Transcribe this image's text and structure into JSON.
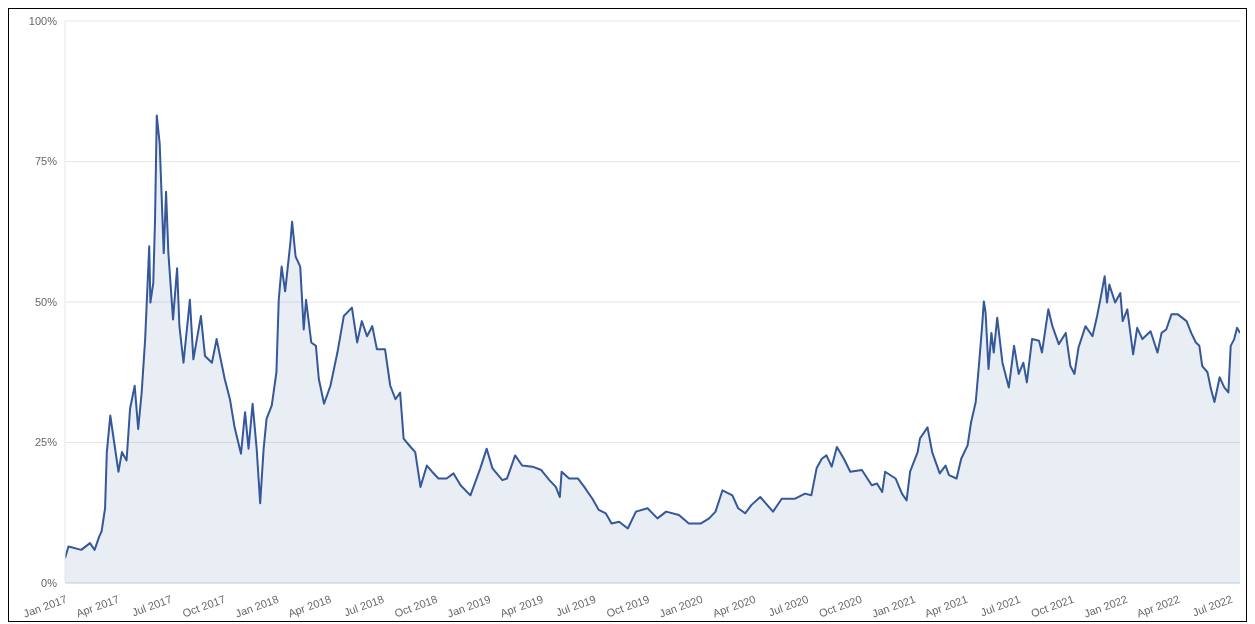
{
  "chart_data": {
    "type": "area",
    "x": [
      "2017-01-01",
      "2017-01-07",
      "2017-01-29",
      "2017-02-13",
      "2017-02-21",
      "2017-03-01",
      "2017-03-05",
      "2017-03-11",
      "2017-03-14",
      "2017-03-20",
      "2017-03-25",
      "2017-04-03",
      "2017-04-09",
      "2017-04-17",
      "2017-04-23",
      "2017-05-01",
      "2017-05-07",
      "2017-05-13",
      "2017-05-19",
      "2017-05-26",
      "2017-05-28",
      "2017-06-02",
      "2017-06-05",
      "2017-06-08",
      "2017-06-13",
      "2017-06-20",
      "2017-06-24",
      "2017-06-28",
      "2017-07-06",
      "2017-07-13",
      "2017-07-17",
      "2017-07-24",
      "2017-08-04",
      "2017-08-10",
      "2017-08-23",
      "2017-08-30",
      "2017-09-11",
      "2017-09-19",
      "2017-10-03",
      "2017-10-12",
      "2017-10-20",
      "2017-10-31",
      "2017-11-07",
      "2017-11-13",
      "2017-11-20",
      "2017-11-27",
      "2017-12-03",
      "2017-12-09",
      "2017-12-14",
      "2017-12-23",
      "2017-12-31",
      "2018-01-04",
      "2018-01-09",
      "2018-01-15",
      "2018-01-24",
      "2018-01-27",
      "2018-02-02",
      "2018-02-10",
      "2018-02-16",
      "2018-02-20",
      "2018-03-01",
      "2018-03-09",
      "2018-03-14",
      "2018-03-23",
      "2018-04-03",
      "2018-04-15",
      "2018-04-26",
      "2018-05-10",
      "2018-05-19",
      "2018-05-27",
      "2018-06-05",
      "2018-06-14",
      "2018-06-22",
      "2018-07-06",
      "2018-07-15",
      "2018-07-24",
      "2018-08-01",
      "2018-08-07",
      "2018-08-19",
      "2018-08-27",
      "2018-09-05",
      "2018-09-16",
      "2018-09-25",
      "2018-10-06",
      "2018-10-20",
      "2018-11-01",
      "2018-11-13",
      "2018-11-30",
      "2018-12-17",
      "2018-12-28",
      "2019-01-07",
      "2019-01-24",
      "2019-02-01",
      "2019-02-15",
      "2019-02-27",
      "2019-03-17",
      "2019-04-01",
      "2019-04-15",
      "2019-04-26",
      "2019-05-03",
      "2019-05-06",
      "2019-05-19",
      "2019-06-03",
      "2019-06-14",
      "2019-06-28",
      "2019-07-09",
      "2019-07-21",
      "2019-07-31",
      "2019-08-13",
      "2019-08-28",
      "2019-09-11",
      "2019-10-01",
      "2019-10-18",
      "2019-11-02",
      "2019-11-24",
      "2019-12-11",
      "2020-01-01",
      "2020-01-15",
      "2020-01-26",
      "2020-02-07",
      "2020-02-24",
      "2020-03-05",
      "2020-03-17",
      "2020-03-28",
      "2020-04-12",
      "2020-05-04",
      "2020-05-19",
      "2020-06-11",
      "2020-06-28",
      "2020-07-09",
      "2020-07-18",
      "2020-07-27",
      "2020-08-04",
      "2020-08-13",
      "2020-08-22",
      "2020-09-03",
      "2020-09-14",
      "2020-10-04",
      "2020-10-21",
      "2020-10-30",
      "2020-11-08",
      "2020-11-13",
      "2020-12-01",
      "2020-12-12",
      "2020-12-20",
      "2020-12-26",
      "2021-01-08",
      "2021-01-12",
      "2021-01-25",
      "2021-02-02",
      "2021-02-15",
      "2021-02-25",
      "2021-03-03",
      "2021-03-16",
      "2021-03-24",
      "2021-04-04",
      "2021-04-10",
      "2021-04-18",
      "2021-04-23",
      "2021-04-29",
      "2021-05-02",
      "2021-05-05",
      "2021-05-10",
      "2021-05-15",
      "2021-05-19",
      "2021-05-25",
      "2021-06-03",
      "2021-06-14",
      "2021-06-23",
      "2021-07-01",
      "2021-07-09",
      "2021-07-15",
      "2021-07-24",
      "2021-08-05",
      "2021-08-10",
      "2021-08-21",
      "2021-08-28",
      "2021-09-08",
      "2021-09-20",
      "2021-09-28",
      "2021-10-05",
      "2021-10-12",
      "2021-10-24",
      "2021-11-05",
      "2021-11-13",
      "2021-11-19",
      "2021-11-26",
      "2021-11-30",
      "2021-12-04",
      "2021-12-14",
      "2021-12-23",
      "2021-12-27",
      "2022-01-04",
      "2022-01-14",
      "2022-01-21",
      "2022-01-30",
      "2022-02-13",
      "2022-02-25",
      "2022-03-04",
      "2022-03-12",
      "2022-03-21",
      "2022-04-01",
      "2022-04-16",
      "2022-04-24",
      "2022-05-02",
      "2022-05-08",
      "2022-05-13",
      "2022-05-22",
      "2022-05-28",
      "2022-06-03",
      "2022-06-12",
      "2022-06-20",
      "2022-06-27",
      "2022-07-01",
      "2022-07-07",
      "2022-07-12",
      "2022-07-17"
    ],
    "series": [
      {
        "color": "#34589a",
        "values": [
          4.4,
          6.5,
          5.9,
          7.1,
          5.9,
          8.3,
          9.2,
          13.3,
          23.3,
          29.8,
          26.2,
          19.8,
          23.3,
          21.8,
          31.0,
          35.1,
          27.4,
          33.9,
          43.4,
          59.9,
          49.9,
          53.4,
          64.6,
          83.2,
          78.2,
          58.7,
          69.6,
          58.7,
          46.9,
          56.0,
          45.7,
          39.2,
          50.4,
          39.8,
          47.5,
          40.4,
          39.2,
          43.4,
          36.3,
          32.7,
          27.7,
          23.0,
          30.4,
          23.9,
          31.9,
          23.9,
          14.2,
          23.9,
          29.2,
          31.6,
          37.5,
          50.4,
          56.3,
          51.9,
          60.5,
          64.3,
          58.1,
          56.3,
          45.1,
          50.4,
          42.8,
          42.2,
          36.3,
          31.9,
          35.1,
          41.0,
          47.5,
          49.0,
          42.8,
          46.6,
          43.9,
          45.7,
          41.6,
          41.6,
          35.1,
          32.7,
          33.9,
          25.7,
          24.2,
          23.3,
          17.1,
          20.9,
          19.8,
          18.6,
          18.6,
          19.5,
          17.4,
          15.6,
          20.4,
          23.9,
          20.4,
          18.3,
          18.6,
          22.7,
          20.9,
          20.7,
          20.1,
          18.3,
          17.1,
          15.3,
          19.8,
          18.6,
          18.6,
          17.1,
          15.0,
          13.0,
          12.4,
          10.6,
          10.9,
          9.7,
          12.7,
          13.3,
          11.5,
          12.7,
          12.1,
          10.6,
          10.6,
          11.5,
          12.7,
          16.5,
          15.6,
          13.3,
          12.4,
          13.9,
          15.3,
          12.7,
          15.0,
          15.0,
          15.9,
          15.6,
          20.4,
          22.1,
          22.7,
          20.7,
          24.2,
          22.1,
          19.8,
          20.1,
          17.4,
          17.7,
          16.2,
          19.8,
          18.6,
          15.9,
          14.7,
          19.8,
          23.3,
          25.7,
          27.7,
          23.3,
          19.5,
          20.9,
          19.2,
          18.6,
          22.1,
          24.5,
          28.6,
          32.2,
          38.1,
          45.7,
          50.1,
          48.1,
          38.1,
          44.5,
          41.0,
          47.2,
          39.2,
          34.8,
          42.2,
          37.2,
          39.2,
          35.7,
          43.4,
          43.1,
          41.0,
          48.7,
          45.7,
          42.5,
          44.5,
          38.6,
          37.2,
          41.9,
          45.7,
          43.9,
          47.5,
          50.7,
          54.6,
          49.9,
          53.1,
          49.9,
          51.6,
          46.6,
          48.7,
          40.7,
          45.4,
          43.4,
          44.8,
          41.0,
          44.5,
          45.1,
          47.8,
          47.8,
          46.6,
          44.5,
          42.8,
          42.2,
          38.6,
          37.5,
          34.5,
          32.2,
          36.6,
          34.8,
          33.9,
          42.2,
          43.4,
          45.4,
          44.5
        ]
      }
    ],
    "xlim": [
      "2017-01-01",
      "2022-07-17"
    ],
    "xticks": [
      {
        "value": "2017-01-01",
        "label": "Jan 2017"
      },
      {
        "value": "2017-04-01",
        "label": "Apr 2017"
      },
      {
        "value": "2017-07-01",
        "label": "Jul 2017"
      },
      {
        "value": "2017-10-01",
        "label": "Oct 2017"
      },
      {
        "value": "2018-01-01",
        "label": "Jan 2018"
      },
      {
        "value": "2018-04-01",
        "label": "Apr 2018"
      },
      {
        "value": "2018-07-01",
        "label": "Jul 2018"
      },
      {
        "value": "2018-10-01",
        "label": "Oct 2018"
      },
      {
        "value": "2019-01-01",
        "label": "Jan 2019"
      },
      {
        "value": "2019-04-01",
        "label": "Apr 2019"
      },
      {
        "value": "2019-07-01",
        "label": "Jul 2019"
      },
      {
        "value": "2019-10-01",
        "label": "Oct 2019"
      },
      {
        "value": "2020-01-01",
        "label": "Jan 2020"
      },
      {
        "value": "2020-04-01",
        "label": "Apr 2020"
      },
      {
        "value": "2020-07-01",
        "label": "Jul 2020"
      },
      {
        "value": "2020-10-01",
        "label": "Oct 2020"
      },
      {
        "value": "2021-01-01",
        "label": "Jan 2021"
      },
      {
        "value": "2021-04-01",
        "label": "Apr 2021"
      },
      {
        "value": "2021-07-01",
        "label": "Jul 2021"
      },
      {
        "value": "2021-10-01",
        "label": "Oct 2021"
      },
      {
        "value": "2022-01-01",
        "label": "Jan 2022"
      },
      {
        "value": "2022-04-01",
        "label": "Apr 2022"
      },
      {
        "value": "2022-07-01",
        "label": "Jul 2022"
      }
    ],
    "ylim": [
      0,
      100
    ],
    "yticks": [
      {
        "value": 0,
        "label": "0%"
      },
      {
        "value": 25,
        "label": "25%"
      },
      {
        "value": 50,
        "label": "50%"
      },
      {
        "value": 75,
        "label": "75%"
      },
      {
        "value": 100,
        "label": "100%"
      }
    ],
    "grid": "y"
  }
}
